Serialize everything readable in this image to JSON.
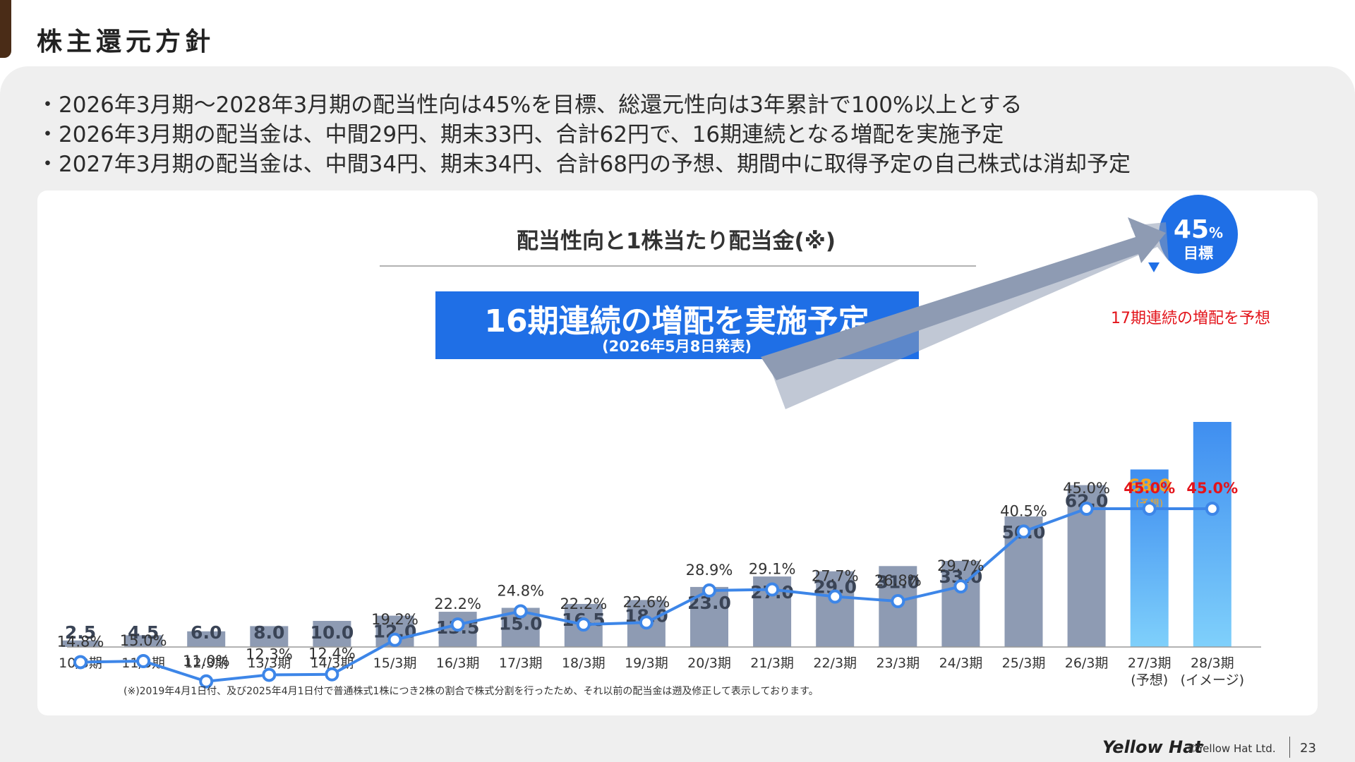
{
  "header": {
    "title": "株主還元方針"
  },
  "bullets": [
    "・2026年3月期〜2028年3月期の配当性向は45%を目標、総還元性向は3年累計で100%以上とする",
    "・2026年3月期の配当金は、中間29円、期末33円、合計62円で、16期連続となる増配を実施予定",
    "・2027年3月期の配当金は、中間34円、期末34円、合計68円の予想、期間中に取得予定の自己株式は消却予定"
  ],
  "chart": {
    "title": "配当性向と1株当たり配当金(※)",
    "banner_main": "16期連続の増配を実施予定",
    "banner_sub": "(2026年5月8日発表)",
    "target_value": "45",
    "target_unit": "%",
    "target_label": "目標",
    "forecast_note": "17期連続の増配を予想",
    "forecast_tag": "(予想)",
    "footnote": "(※)2019年4月1日付、及び2025年4月1日付で普通株式1株につき2株の割合で株式分割を行ったため、それ以前の配当金は遡及修正して表示しております。"
  },
  "chart_data": {
    "type": "bar",
    "title": "配当性向と1株当たり配当金(※)",
    "categories": [
      "10/3期",
      "11/3期",
      "12/3期",
      "13/3期",
      "14/3期",
      "15/3期",
      "16/3期",
      "17/3期",
      "18/3期",
      "19/3期",
      "20/3期",
      "21/3期",
      "22/3期",
      "23/3期",
      "24/3期",
      "25/3期",
      "26/3期",
      "27/3期",
      "28/3期"
    ],
    "category_sublabels": [
      "",
      "",
      "",
      "",
      "",
      "",
      "",
      "",
      "",
      "",
      "",
      "",
      "",
      "",
      "",
      "",
      "",
      "(予想)",
      "(イメージ)"
    ],
    "series": [
      {
        "type": "bar",
        "values": [
          2.5,
          4.5,
          6.0,
          8.0,
          10.0,
          12.0,
          13.5,
          15.0,
          16.5,
          18.0,
          23.0,
          27.0,
          29.0,
          31.0,
          33.0,
          50.0,
          62.0,
          68.0,
          null
        ],
        "labels": [
          "2.5",
          "4.5",
          "6.0",
          "8.0",
          "10.0",
          "12.0",
          "13.5",
          "15.0",
          "16.5",
          "18.0",
          "23.0",
          "27.0",
          "29.0",
          "31.0",
          "33.0",
          "50.0",
          "62.0",
          "68.0",
          ""
        ]
      },
      {
        "type": "line",
        "values": [
          14.8,
          15.0,
          11.0,
          12.3,
          12.4,
          19.2,
          22.2,
          24.8,
          22.2,
          22.6,
          28.9,
          29.1,
          27.7,
          26.8,
          29.7,
          40.5,
          45.0,
          45.0,
          45.0
        ],
        "labels": [
          "14.8%",
          "15.0%",
          "11.0%",
          "12.3%",
          "12.4%",
          "19.2%",
          "22.2%",
          "24.8%",
          "22.2%",
          "22.6%",
          "28.9%",
          "29.1%",
          "27.7%",
          "26.8%",
          "29.7%",
          "40.5%",
          "45.0%",
          "45.0%",
          "45.0%"
        ]
      }
    ],
    "colors": {
      "bar": "#8e9bb3",
      "bar_forecast_top": "#3f8ef0",
      "bar_forecast_bottom": "#7fd0fb",
      "line": "#3d86e8",
      "highlight": "#e3141b",
      "banner": "#1f6fe6",
      "forecast_value": "#f5a623",
      "arrow": "#8e9bb3"
    }
  },
  "footer": {
    "brand": "Yellow Hat",
    "copyright": "©Yellow Hat Ltd.",
    "page": "23"
  }
}
